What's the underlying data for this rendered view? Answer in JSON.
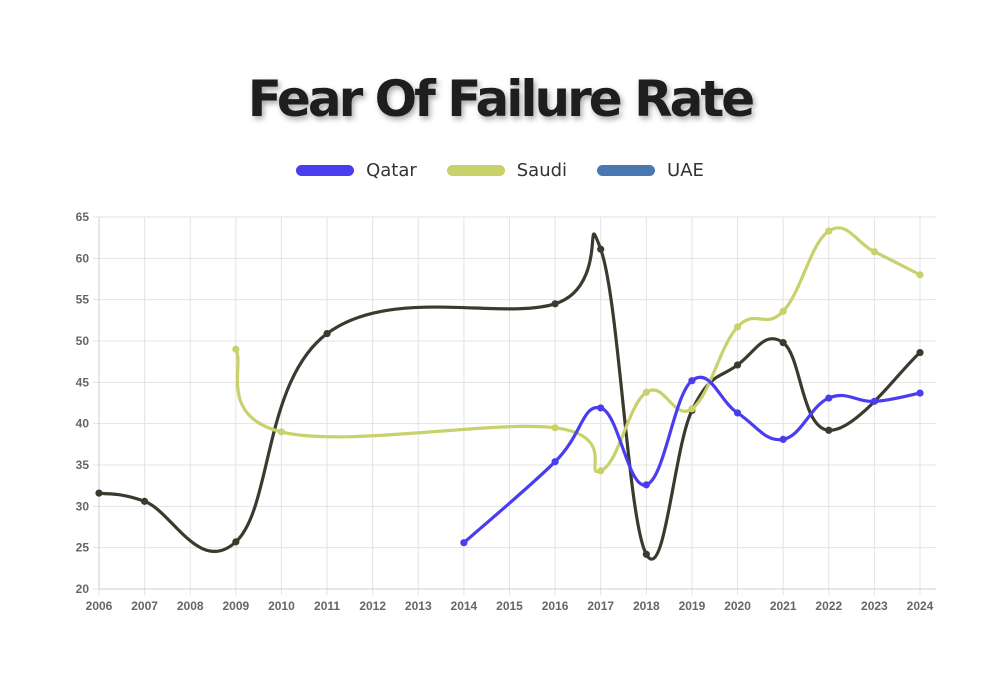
{
  "chart_data": {
    "type": "line",
    "title": "Fear Of Failure Rate",
    "categories": [
      "2006",
      "2007",
      "2008",
      "2009",
      "2010",
      "2011",
      "2012",
      "2013",
      "2014",
      "2015",
      "2016",
      "2017",
      "2018",
      "2019",
      "2020",
      "2021",
      "2022",
      "2023",
      "2024"
    ],
    "y_ticks": [
      "20",
      "25",
      "30",
      "35",
      "40",
      "45",
      "50",
      "55",
      "60",
      "65"
    ],
    "ylim": [
      20,
      65
    ],
    "grid": true,
    "legend_position": "top",
    "series": [
      {
        "name": "Qatar",
        "color": "#4a3df0",
        "values": [
          null,
          null,
          null,
          null,
          null,
          null,
          null,
          null,
          25.6,
          null,
          35.4,
          41.9,
          32.6,
          45.2,
          41.3,
          38.1,
          43.1,
          42.7,
          43.7
        ]
      },
      {
        "name": "Saudi",
        "color": "#c8d16b",
        "values": [
          null,
          null,
          null,
          49.0,
          39.0,
          null,
          null,
          null,
          null,
          null,
          39.5,
          34.3,
          43.8,
          41.8,
          51.7,
          53.6,
          63.3,
          60.8,
          58.0
        ]
      },
      {
        "name": "UAE",
        "color": "#3b3a2e",
        "legend_color": "#4a78b0",
        "values": [
          31.6,
          30.6,
          null,
          25.7,
          null,
          50.9,
          null,
          null,
          null,
          null,
          54.5,
          61.1,
          24.2,
          41.6,
          47.1,
          49.8,
          39.2,
          null,
          48.6
        ]
      }
    ]
  }
}
